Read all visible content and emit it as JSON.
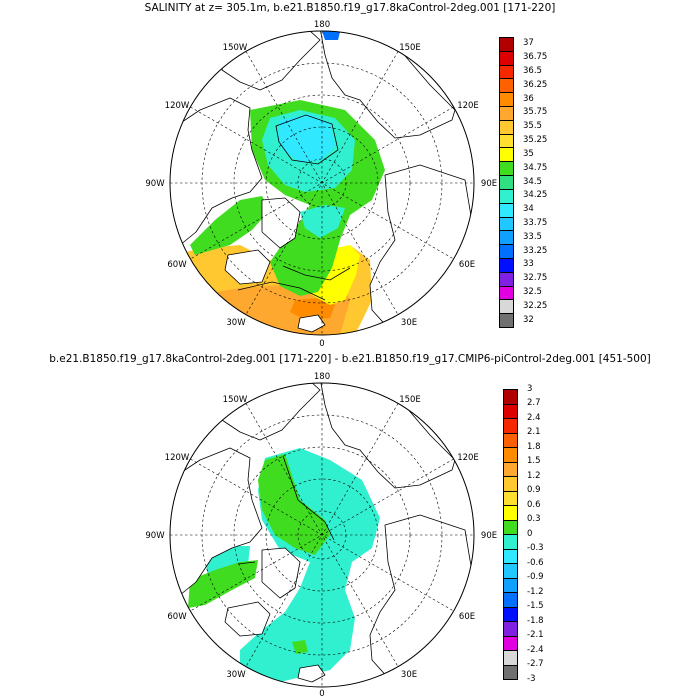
{
  "panels": [
    {
      "title": "SALINITY at z= 305.1m, b.e21.B1850.f19_g17.8kaControl-2deg.001 [171-220]",
      "lon_labels": {
        "top": "180",
        "top_left": "150W",
        "top_right": "150E",
        "upper_left": "120W",
        "upper_right": "120E",
        "left": "90W",
        "right": "90E",
        "lower_left": "60W",
        "lower_right": "60E",
        "bottom_left": "30W",
        "bottom_right": "30E",
        "bottom": "0"
      },
      "colorbar": {
        "labels": [
          "37",
          "36.75",
          "36.5",
          "36.25",
          "36",
          "35.75",
          "35.5",
          "35.25",
          "35",
          "34.75",
          "34.5",
          "34.25",
          "34",
          "33.75",
          "33.5",
          "33.25",
          "33",
          "32.75",
          "32.5",
          "32.25",
          "32"
        ],
        "colors": [
          "#b00000",
          "#dc0000",
          "#f52800",
          "#ff6000",
          "#ff8c00",
          "#ffa830",
          "#ffc830",
          "#ffe030",
          "#ffff00",
          "#40dc20",
          "#30e080",
          "#30f0d0",
          "#30e8ff",
          "#20c8ff",
          "#10a0ff",
          "#0070ff",
          "#0010ff",
          "#8020e0",
          "#e000e0",
          "#d8d8d8",
          "#707070"
        ]
      }
    },
    {
      "title": "b.e21.B1850.f19_g17.8kaControl-2deg.001 [171-220] - b.e21.B1850.f19_g17.CMIP6-piControl-2deg.001 [451-500]",
      "lon_labels": {
        "top": "180",
        "top_left": "150W",
        "top_right": "150E",
        "upper_left": "120W",
        "upper_right": "120E",
        "left": "90W",
        "right": "90E",
        "lower_left": "60W",
        "lower_right": "60E",
        "bottom_left": "30W",
        "bottom_right": "30E",
        "bottom": "0"
      },
      "colorbar": {
        "labels": [
          "3",
          "2.7",
          "2.4",
          "2.1",
          "1.8",
          "1.5",
          "1.2",
          "0.9",
          "0.6",
          "0.3",
          "0",
          "-0.3",
          "-0.6",
          "-0.9",
          "-1.2",
          "-1.5",
          "-1.8",
          "-2.1",
          "-2.4",
          "-2.7",
          "-3"
        ],
        "colors": [
          "#b00000",
          "#dc0000",
          "#f52800",
          "#ff6000",
          "#ff8c00",
          "#ffa830",
          "#ffc830",
          "#ffe030",
          "#ffff00",
          "#40dc20",
          "#30f0d0",
          "#30e8ff",
          "#20c8ff",
          "#10a0ff",
          "#0070ff",
          "#0010ff",
          "#8020e0",
          "#e000e0",
          "#d8d8d8",
          "#707070"
        ]
      }
    }
  ]
}
